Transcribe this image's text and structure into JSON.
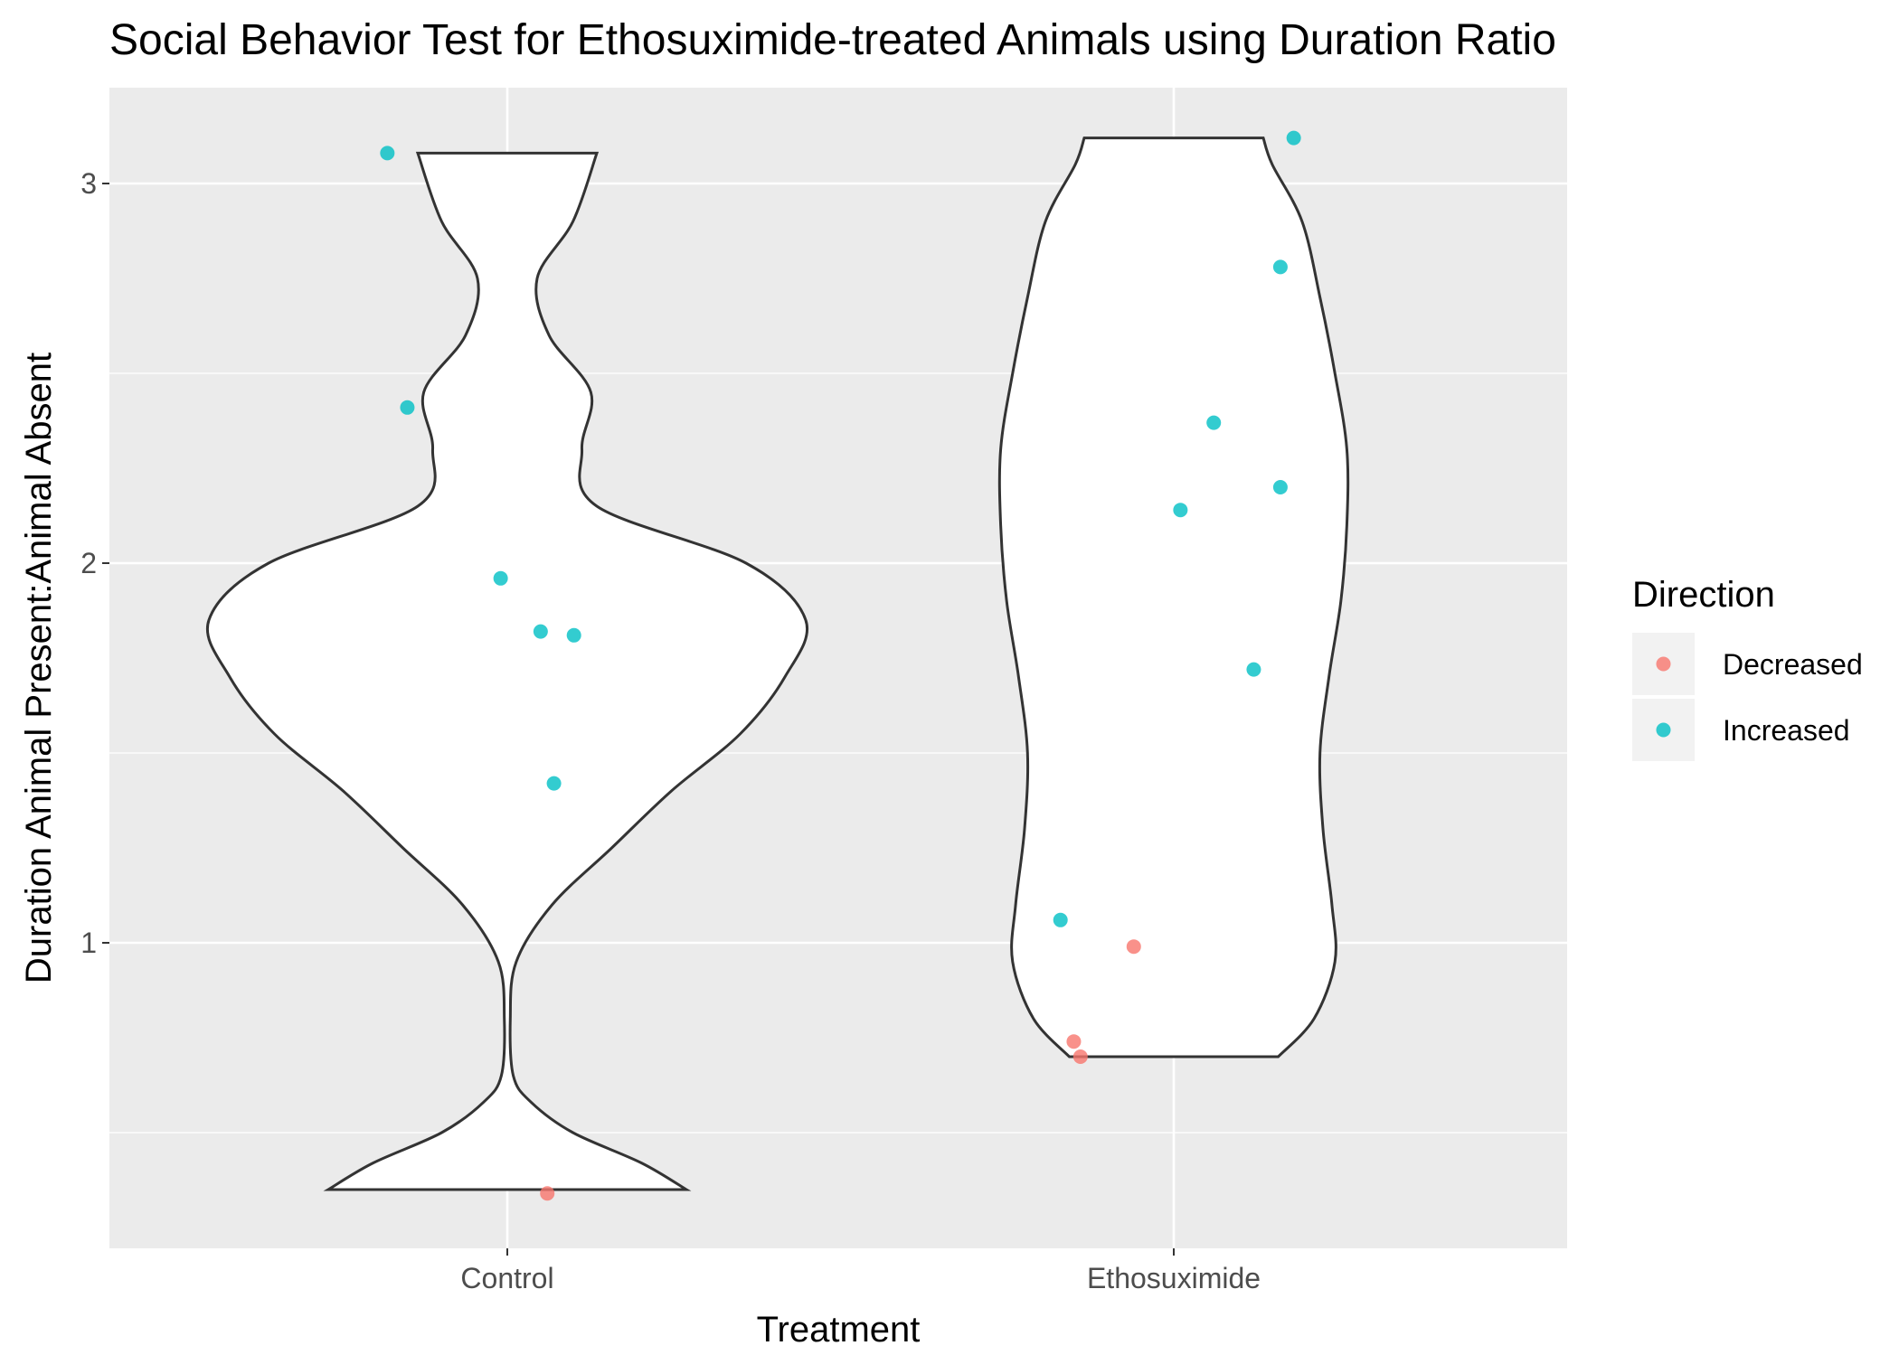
{
  "chart_data": {
    "type": "violin",
    "title": "Social Behavior Test for Ethosuximide-treated Animals using Duration Ratio",
    "xlabel": "Treatment",
    "ylabel": "Duration Animal Present:Animal Absent",
    "categories": [
      "Control",
      "Ethosuximide"
    ],
    "y_ticks": [
      1,
      2,
      3
    ],
    "ylim": [
      0.2,
      3.23
    ],
    "grid": true,
    "legend": {
      "title": "Direction",
      "position": "right",
      "entries": [
        {
          "label": "Decreased",
          "color": "#F8766D"
        },
        {
          "label": "Increased",
          "color": "#00BFC4"
        }
      ]
    },
    "violins": [
      {
        "category": "Control",
        "ymin": 0.35,
        "ymax": 3.08,
        "profile": [
          [
            0.35,
            0.6
          ],
          [
            0.42,
            0.45
          ],
          [
            0.5,
            0.22
          ],
          [
            0.58,
            0.08
          ],
          [
            0.65,
            0.02
          ],
          [
            0.8,
            0.01
          ],
          [
            0.95,
            0.03
          ],
          [
            1.1,
            0.15
          ],
          [
            1.25,
            0.35
          ],
          [
            1.4,
            0.55
          ],
          [
            1.55,
            0.78
          ],
          [
            1.7,
            0.93
          ],
          [
            1.85,
            1.0
          ],
          [
            2.0,
            0.8
          ],
          [
            2.15,
            0.3
          ],
          [
            2.3,
            0.25
          ],
          [
            2.45,
            0.28
          ],
          [
            2.6,
            0.14
          ],
          [
            2.75,
            0.1
          ],
          [
            2.9,
            0.22
          ],
          [
            3.08,
            0.3
          ]
        ]
      },
      {
        "category": "Ethosuximide",
        "ymin": 0.7,
        "ymax": 3.12,
        "profile": [
          [
            0.7,
            0.35
          ],
          [
            0.8,
            0.47
          ],
          [
            0.95,
            0.54
          ],
          [
            1.1,
            0.53
          ],
          [
            1.3,
            0.5
          ],
          [
            1.5,
            0.49
          ],
          [
            1.7,
            0.52
          ],
          [
            1.9,
            0.56
          ],
          [
            2.1,
            0.58
          ],
          [
            2.3,
            0.58
          ],
          [
            2.5,
            0.54
          ],
          [
            2.7,
            0.49
          ],
          [
            2.9,
            0.43
          ],
          [
            3.05,
            0.33
          ],
          [
            3.12,
            0.3
          ]
        ]
      }
    ],
    "points": [
      {
        "category": "Control",
        "jitter": -0.18,
        "y": 3.08,
        "direction": "Increased"
      },
      {
        "category": "Control",
        "jitter": -0.15,
        "y": 2.41,
        "direction": "Increased"
      },
      {
        "category": "Control",
        "jitter": -0.01,
        "y": 1.96,
        "direction": "Increased"
      },
      {
        "category": "Control",
        "jitter": 0.05,
        "y": 1.82,
        "direction": "Increased"
      },
      {
        "category": "Control",
        "jitter": 0.1,
        "y": 1.81,
        "direction": "Increased"
      },
      {
        "category": "Control",
        "jitter": 0.07,
        "y": 1.42,
        "direction": "Increased"
      },
      {
        "category": "Control",
        "jitter": 0.06,
        "y": 0.34,
        "direction": "Decreased"
      },
      {
        "category": "Ethosuximide",
        "jitter": 0.18,
        "y": 3.12,
        "direction": "Increased"
      },
      {
        "category": "Ethosuximide",
        "jitter": 0.16,
        "y": 2.78,
        "direction": "Increased"
      },
      {
        "category": "Ethosuximide",
        "jitter": 0.06,
        "y": 2.37,
        "direction": "Increased"
      },
      {
        "category": "Ethosuximide",
        "jitter": 0.16,
        "y": 2.2,
        "direction": "Increased"
      },
      {
        "category": "Ethosuximide",
        "jitter": 0.01,
        "y": 2.14,
        "direction": "Increased"
      },
      {
        "category": "Ethosuximide",
        "jitter": 0.12,
        "y": 1.72,
        "direction": "Increased"
      },
      {
        "category": "Ethosuximide",
        "jitter": -0.17,
        "y": 1.06,
        "direction": "Increased"
      },
      {
        "category": "Ethosuximide",
        "jitter": -0.06,
        "y": 0.99,
        "direction": "Decreased"
      },
      {
        "category": "Ethosuximide",
        "jitter": -0.15,
        "y": 0.74,
        "direction": "Decreased"
      },
      {
        "category": "Ethosuximide",
        "jitter": -0.14,
        "y": 0.7,
        "direction": "Decreased"
      }
    ],
    "colors": {
      "panel_background": "#EBEBEB",
      "grid": "#FFFFFF",
      "violin_fill": "#FFFFFF",
      "violin_stroke": "#333333",
      "Decreased": "#F8766D",
      "Increased": "#00BFC4"
    }
  }
}
